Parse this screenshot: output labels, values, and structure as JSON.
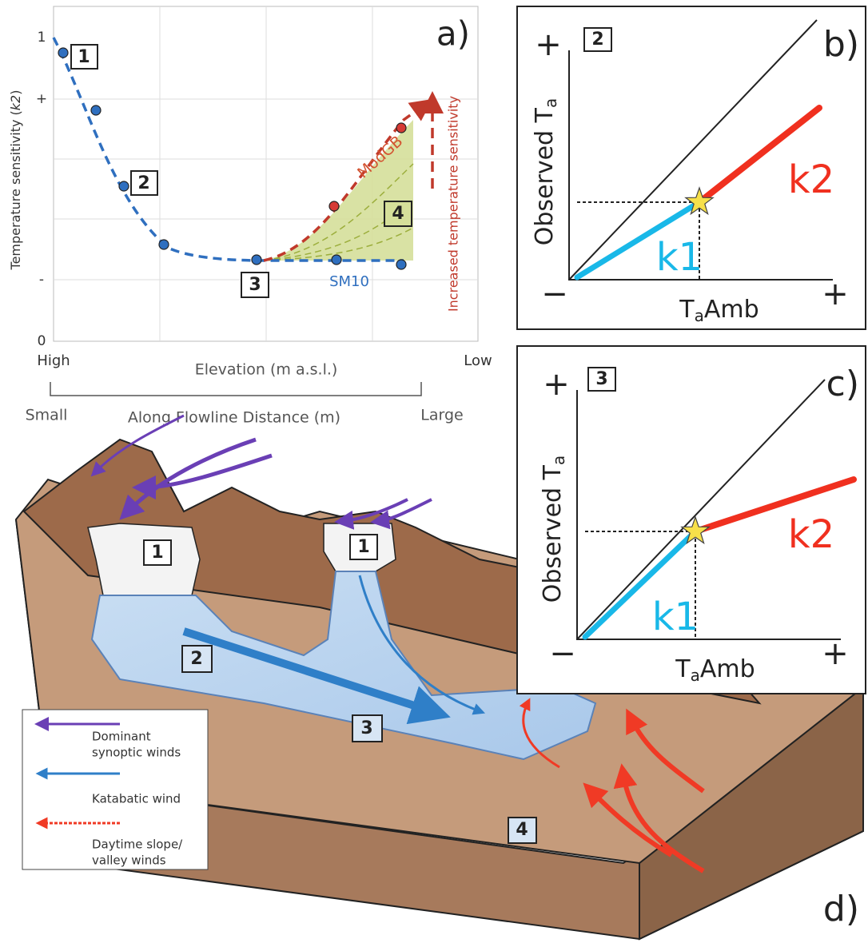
{
  "panel_a": {
    "label": "a)",
    "y_axis_label": [
      "Temperature sensitivity (",
      "k2",
      ")"
    ],
    "yticks": [
      "1",
      "+",
      "-",
      "0"
    ],
    "x_left": "High",
    "x_axis_label": "Elevation (m a.s.l.)",
    "x_right": "Low",
    "bracket_left": "Small",
    "bracket_label": "Along Flowline Distance (m)",
    "bracket_right": "Large",
    "boxes": [
      "1",
      "2",
      "3",
      "4"
    ],
    "curve_labels": [
      "ModGB",
      "SM10"
    ],
    "arrow_label": "Increased temperature sensitivity"
  },
  "panel_b": {
    "label": "b)",
    "box": "2",
    "y_plus": "+",
    "x_minus": "−",
    "x_plus": "+",
    "y_axis_label": [
      "Observed T",
      "a"
    ],
    "x_axis_label": [
      "T",
      "a",
      "Amb"
    ],
    "low_label": "k1",
    "high_label": "k2"
  },
  "panel_c": {
    "label": "c)",
    "box": "3",
    "y_plus": "+",
    "x_minus": "−",
    "x_plus": "+",
    "y_axis_label": [
      "Observed T",
      "a"
    ],
    "x_axis_label": [
      "T",
      "a",
      "Amb"
    ],
    "low_label": "k1",
    "high_label": "k2"
  },
  "panel_d": {
    "label": "d)",
    "boxes": [
      "1",
      "1",
      "2",
      "3",
      "4"
    ],
    "legend": [
      "Dominant",
      "synoptic winds",
      "Katabatic wind",
      "Daytime slope/",
      "valley winds"
    ]
  }
}
